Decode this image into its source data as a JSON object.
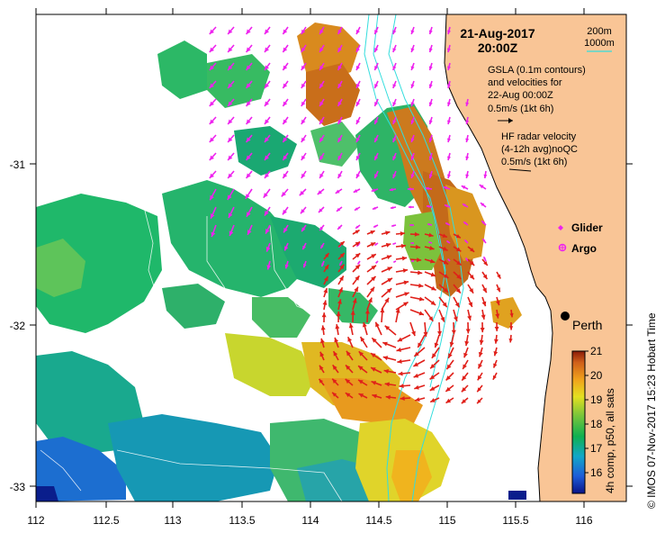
{
  "map": {
    "date": "21-Aug-2017",
    "time": "20:00Z",
    "scale_legend": {
      "contour_1": "200m",
      "contour_2": "1000m"
    },
    "gsla_legend": {
      "line1": "GSLA (0.1m contours)",
      "line2": "and velocities for",
      "line3": "22-Aug 00:00Z",
      "line4": "0.5m/s (1kt 6h)"
    },
    "hf_legend": {
      "line1": "HF radar velocity",
      "line2": "(4-12h avg)noQC",
      "line3": "0.5m/s (1kt 6h)"
    },
    "markers": {
      "glider": "Glider",
      "argo": "Argo"
    },
    "city": "Perth",
    "colorbar": {
      "title": "4h comp, p50, all sats",
      "ticks": [
        "21",
        "20",
        "19",
        "18",
        "17",
        "16"
      ]
    },
    "credit": "©  IMOS 07-Nov-2017 15:23 Hobart Time",
    "x_ticks": [
      "112",
      "112.5",
      "113",
      "113.5",
      "114",
      "114.5",
      "115",
      "115.5",
      "116"
    ],
    "y_ticks": [
      "-31",
      "-32",
      "-33"
    ],
    "colors": {
      "land": "#f9c596",
      "hf_arrow": "#e0201a",
      "gsla_arrow": "#ee22ee",
      "isobath": "#33dddd"
    },
    "icons": [
      "glider-marker-icon",
      "argo-marker-icon",
      "perth-city-icon"
    ]
  }
}
